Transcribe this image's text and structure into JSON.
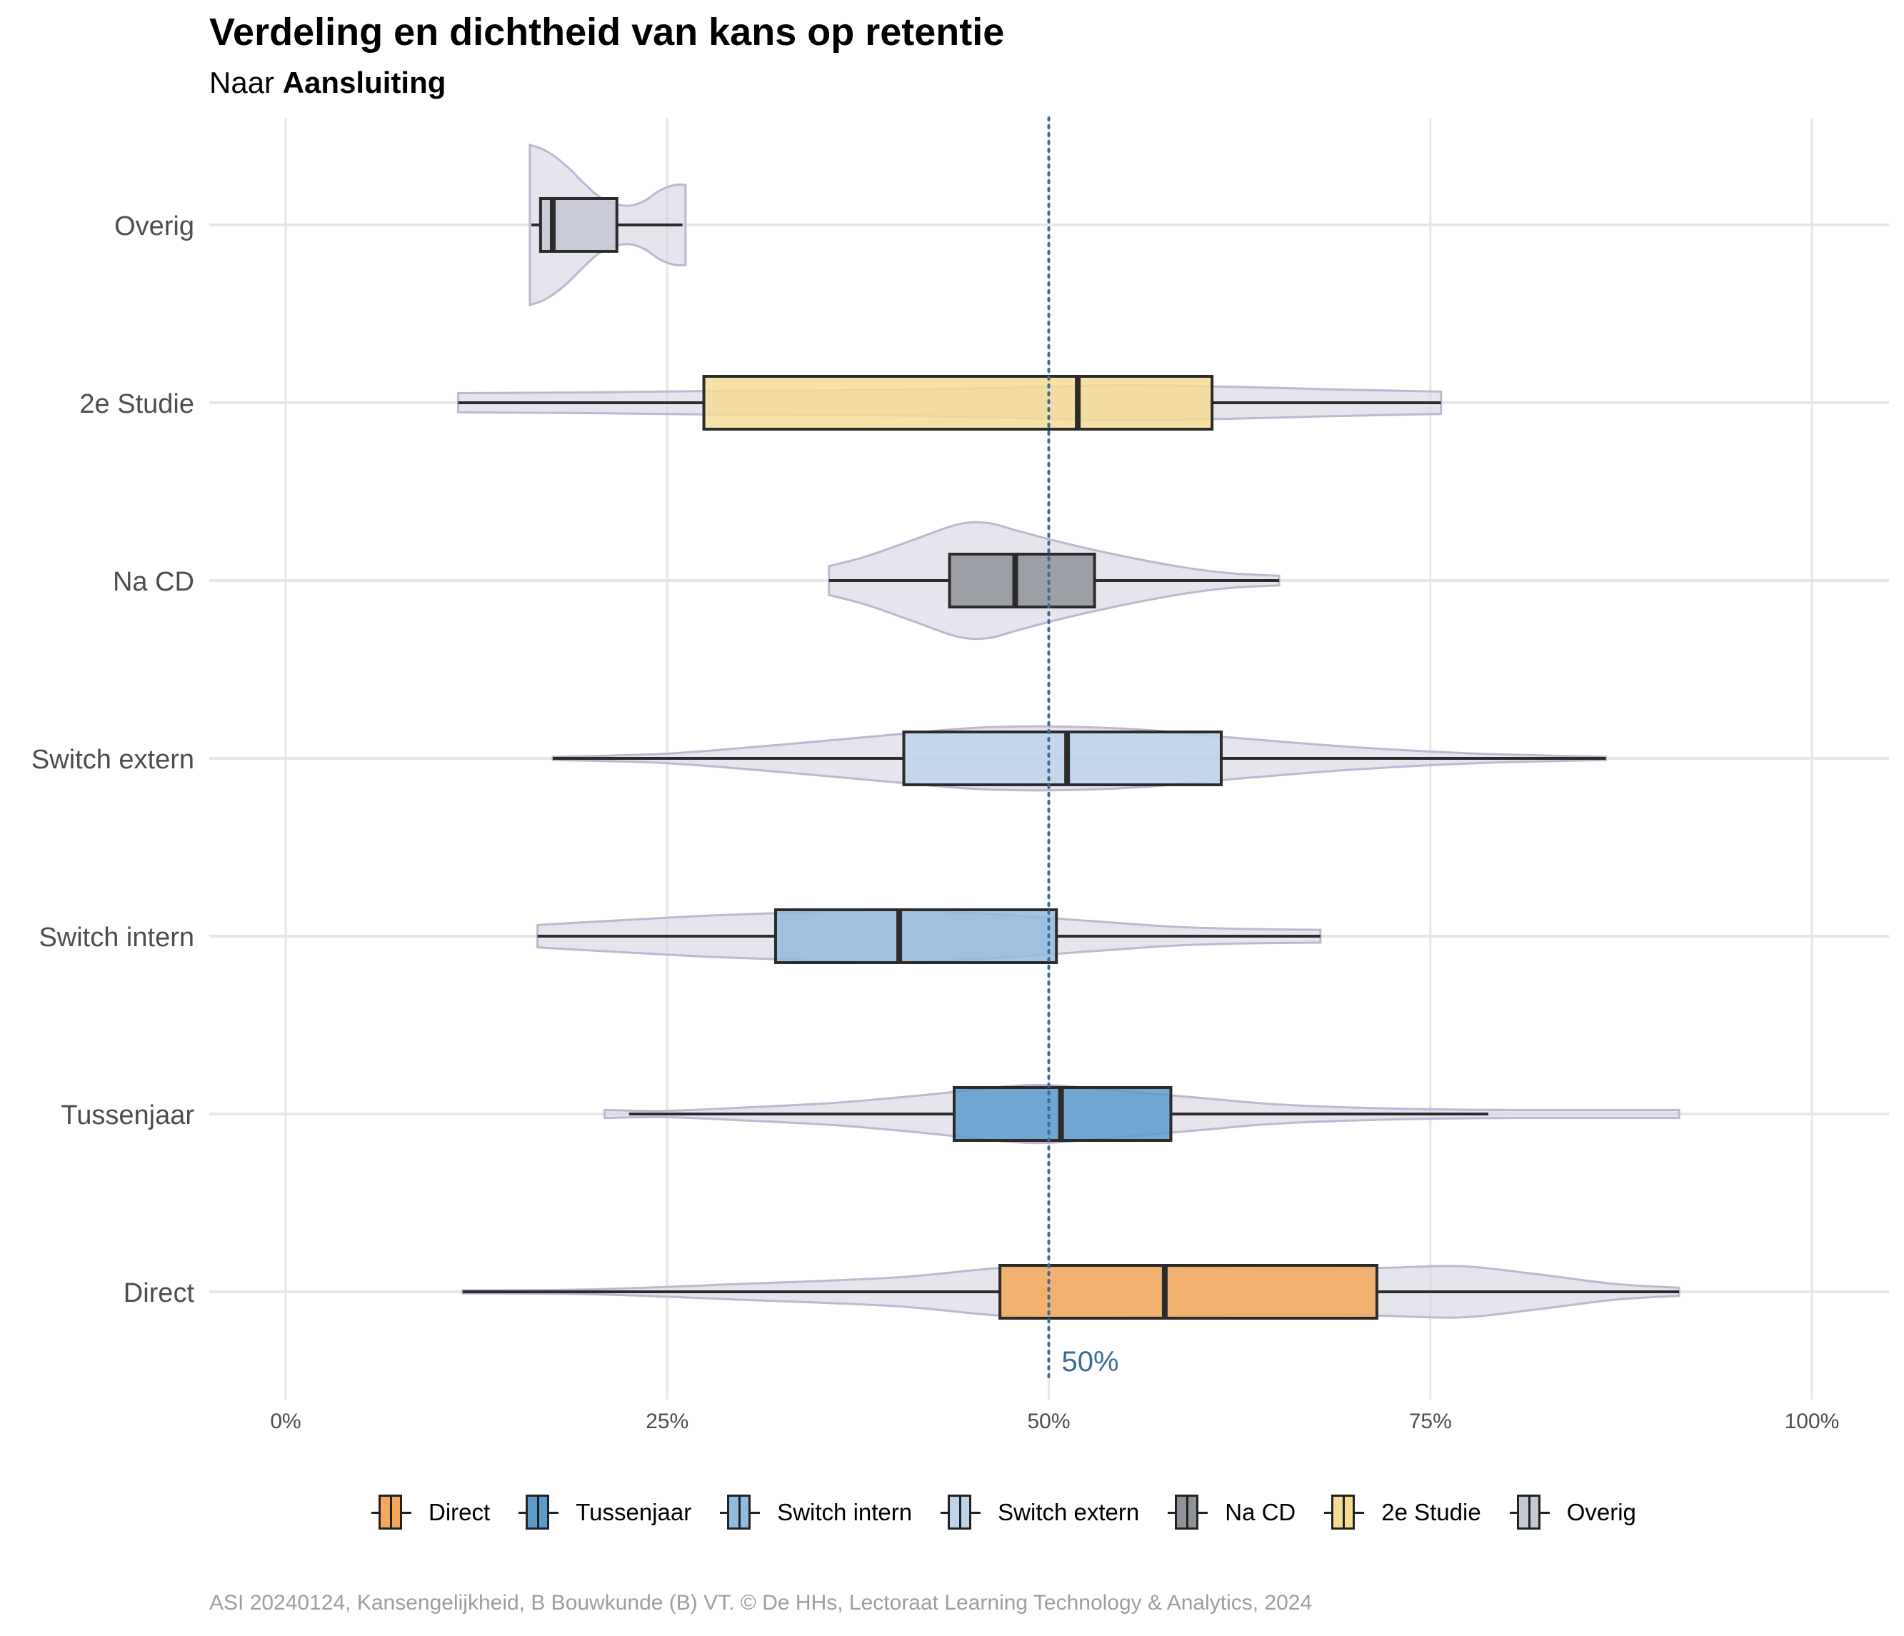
{
  "header": {
    "title": "Verdeling en dichtheid van kans op retentie",
    "subtitle_prefix": "Naar",
    "subtitle_emphasis": "Aansluiting"
  },
  "caption": "ASI 20240124, Kansengelijkheid, B Bouwkunde (B) VT. © De HHs, Lectoraat Learning Technology & Analytics, 2024",
  "colors": {
    "violin_fill": "#d9d6e3",
    "violin_stroke": "#bdb8cf",
    "grid": "#e6e6e6",
    "reference_line": "#3d6b99",
    "box_stroke": "#2b2b2b"
  },
  "chart_data": {
    "type": "violin-box",
    "orientation": "horizontal",
    "x_axis": {
      "range": [
        0,
        1
      ],
      "tick_values": [
        0,
        0.25,
        0.5,
        0.75,
        1
      ],
      "tick_labels": [
        "0%",
        "25%",
        "50%",
        "75%",
        "100%"
      ]
    },
    "reference_line": {
      "value": 0.5,
      "label": "50%",
      "style": "dotted"
    },
    "grid": true,
    "legend_position": "bottom",
    "categories": [
      "Overig",
      "2e Studie",
      "Na CD",
      "Switch extern",
      "Switch intern",
      "Tussenjaar",
      "Direct"
    ],
    "series": [
      {
        "name": "Overig",
        "color": "#c3c8d2",
        "box": {
          "min": 0.161,
          "q1": 0.167,
          "median": 0.175,
          "q3": 0.217,
          "max": 0.26
        },
        "violin": {
          "range": [
            0.16,
            0.262
          ],
          "density": [
            [
              0.16,
              1.0
            ],
            [
              0.168,
              0.95
            ],
            [
              0.176,
              0.86
            ],
            [
              0.185,
              0.72
            ],
            [
              0.195,
              0.53
            ],
            [
              0.205,
              0.36
            ],
            [
              0.215,
              0.27
            ],
            [
              0.225,
              0.24
            ],
            [
              0.235,
              0.3
            ],
            [
              0.245,
              0.43
            ],
            [
              0.255,
              0.5
            ],
            [
              0.262,
              0.5
            ]
          ]
        }
      },
      {
        "name": "2e Studie",
        "color": "#f5dc96",
        "box": {
          "min": 0.113,
          "q1": 0.274,
          "median": 0.519,
          "q3": 0.607,
          "max": 0.757
        },
        "violin": {
          "range": [
            0.113,
            0.757
          ],
          "density": [
            [
              0.113,
              0.12
            ],
            [
              0.2,
              0.13
            ],
            [
              0.3,
              0.15
            ],
            [
              0.4,
              0.16
            ],
            [
              0.5,
              0.2
            ],
            [
              0.55,
              0.22
            ],
            [
              0.62,
              0.2
            ],
            [
              0.68,
              0.17
            ],
            [
              0.757,
              0.14
            ]
          ]
        }
      },
      {
        "name": "Na CD",
        "color": "#8f9399",
        "box": {
          "min": 0.356,
          "q1": 0.435,
          "median": 0.478,
          "q3": 0.53,
          "max": 0.651
        },
        "violin": {
          "range": [
            0.356,
            0.651
          ],
          "density": [
            [
              0.356,
              0.18
            ],
            [
              0.38,
              0.3
            ],
            [
              0.41,
              0.5
            ],
            [
              0.44,
              0.7
            ],
            [
              0.46,
              0.72
            ],
            [
              0.48,
              0.62
            ],
            [
              0.51,
              0.47
            ],
            [
              0.55,
              0.3
            ],
            [
              0.59,
              0.16
            ],
            [
              0.62,
              0.09
            ],
            [
              0.651,
              0.06
            ]
          ]
        }
      },
      {
        "name": "Switch extern",
        "color": "#bcd4ea",
        "box": {
          "min": 0.175,
          "q1": 0.405,
          "median": 0.512,
          "q3": 0.613,
          "max": 0.865
        },
        "violin": {
          "range": [
            0.175,
            0.865
          ],
          "density": [
            [
              0.175,
              0.0
            ],
            [
              0.25,
              0.06
            ],
            [
              0.33,
              0.18
            ],
            [
              0.4,
              0.3
            ],
            [
              0.45,
              0.38
            ],
            [
              0.5,
              0.4
            ],
            [
              0.56,
              0.36
            ],
            [
              0.62,
              0.26
            ],
            [
              0.7,
              0.14
            ],
            [
              0.78,
              0.06
            ],
            [
              0.865,
              0.0
            ]
          ]
        }
      },
      {
        "name": "Switch intern",
        "color": "#92bbdc",
        "box": {
          "min": 0.165,
          "q1": 0.321,
          "median": 0.402,
          "q3": 0.505,
          "max": 0.678
        },
        "violin": {
          "range": [
            0.165,
            0.678
          ],
          "density": [
            [
              0.165,
              0.14
            ],
            [
              0.22,
              0.2
            ],
            [
              0.28,
              0.26
            ],
            [
              0.34,
              0.3
            ],
            [
              0.4,
              0.32
            ],
            [
              0.46,
              0.28
            ],
            [
              0.52,
              0.2
            ],
            [
              0.58,
              0.12
            ],
            [
              0.63,
              0.09
            ],
            [
              0.678,
              0.08
            ]
          ]
        }
      },
      {
        "name": "Tussenjaar",
        "color": "#5a9bc9",
        "box": {
          "min": 0.225,
          "q1": 0.438,
          "median": 0.508,
          "q3": 0.58,
          "max": 0.788
        },
        "violin": {
          "range": [
            0.209,
            0.913
          ],
          "density": [
            [
              0.209,
              0.05
            ],
            [
              0.25,
              0.04
            ],
            [
              0.3,
              0.08
            ],
            [
              0.36,
              0.14
            ],
            [
              0.42,
              0.24
            ],
            [
              0.47,
              0.34
            ],
            [
              0.5,
              0.36
            ],
            [
              0.54,
              0.3
            ],
            [
              0.6,
              0.2
            ],
            [
              0.65,
              0.12
            ],
            [
              0.72,
              0.07
            ],
            [
              0.8,
              0.05
            ],
            [
              0.913,
              0.05
            ]
          ]
        }
      },
      {
        "name": "Direct",
        "color": "#f2a95b",
        "box": {
          "min": 0.116,
          "q1": 0.468,
          "median": 0.576,
          "q3": 0.715,
          "max": 0.913
        },
        "violin": {
          "range": [
            0.116,
            0.913
          ],
          "density": [
            [
              0.116,
              0.0
            ],
            [
              0.2,
              0.03
            ],
            [
              0.3,
              0.1
            ],
            [
              0.4,
              0.18
            ],
            [
              0.47,
              0.3
            ],
            [
              0.53,
              0.32
            ],
            [
              0.6,
              0.3
            ],
            [
              0.66,
              0.28
            ],
            [
              0.72,
              0.3
            ],
            [
              0.77,
              0.32
            ],
            [
              0.82,
              0.22
            ],
            [
              0.87,
              0.1
            ],
            [
              0.913,
              0.05
            ]
          ]
        }
      }
    ]
  }
}
